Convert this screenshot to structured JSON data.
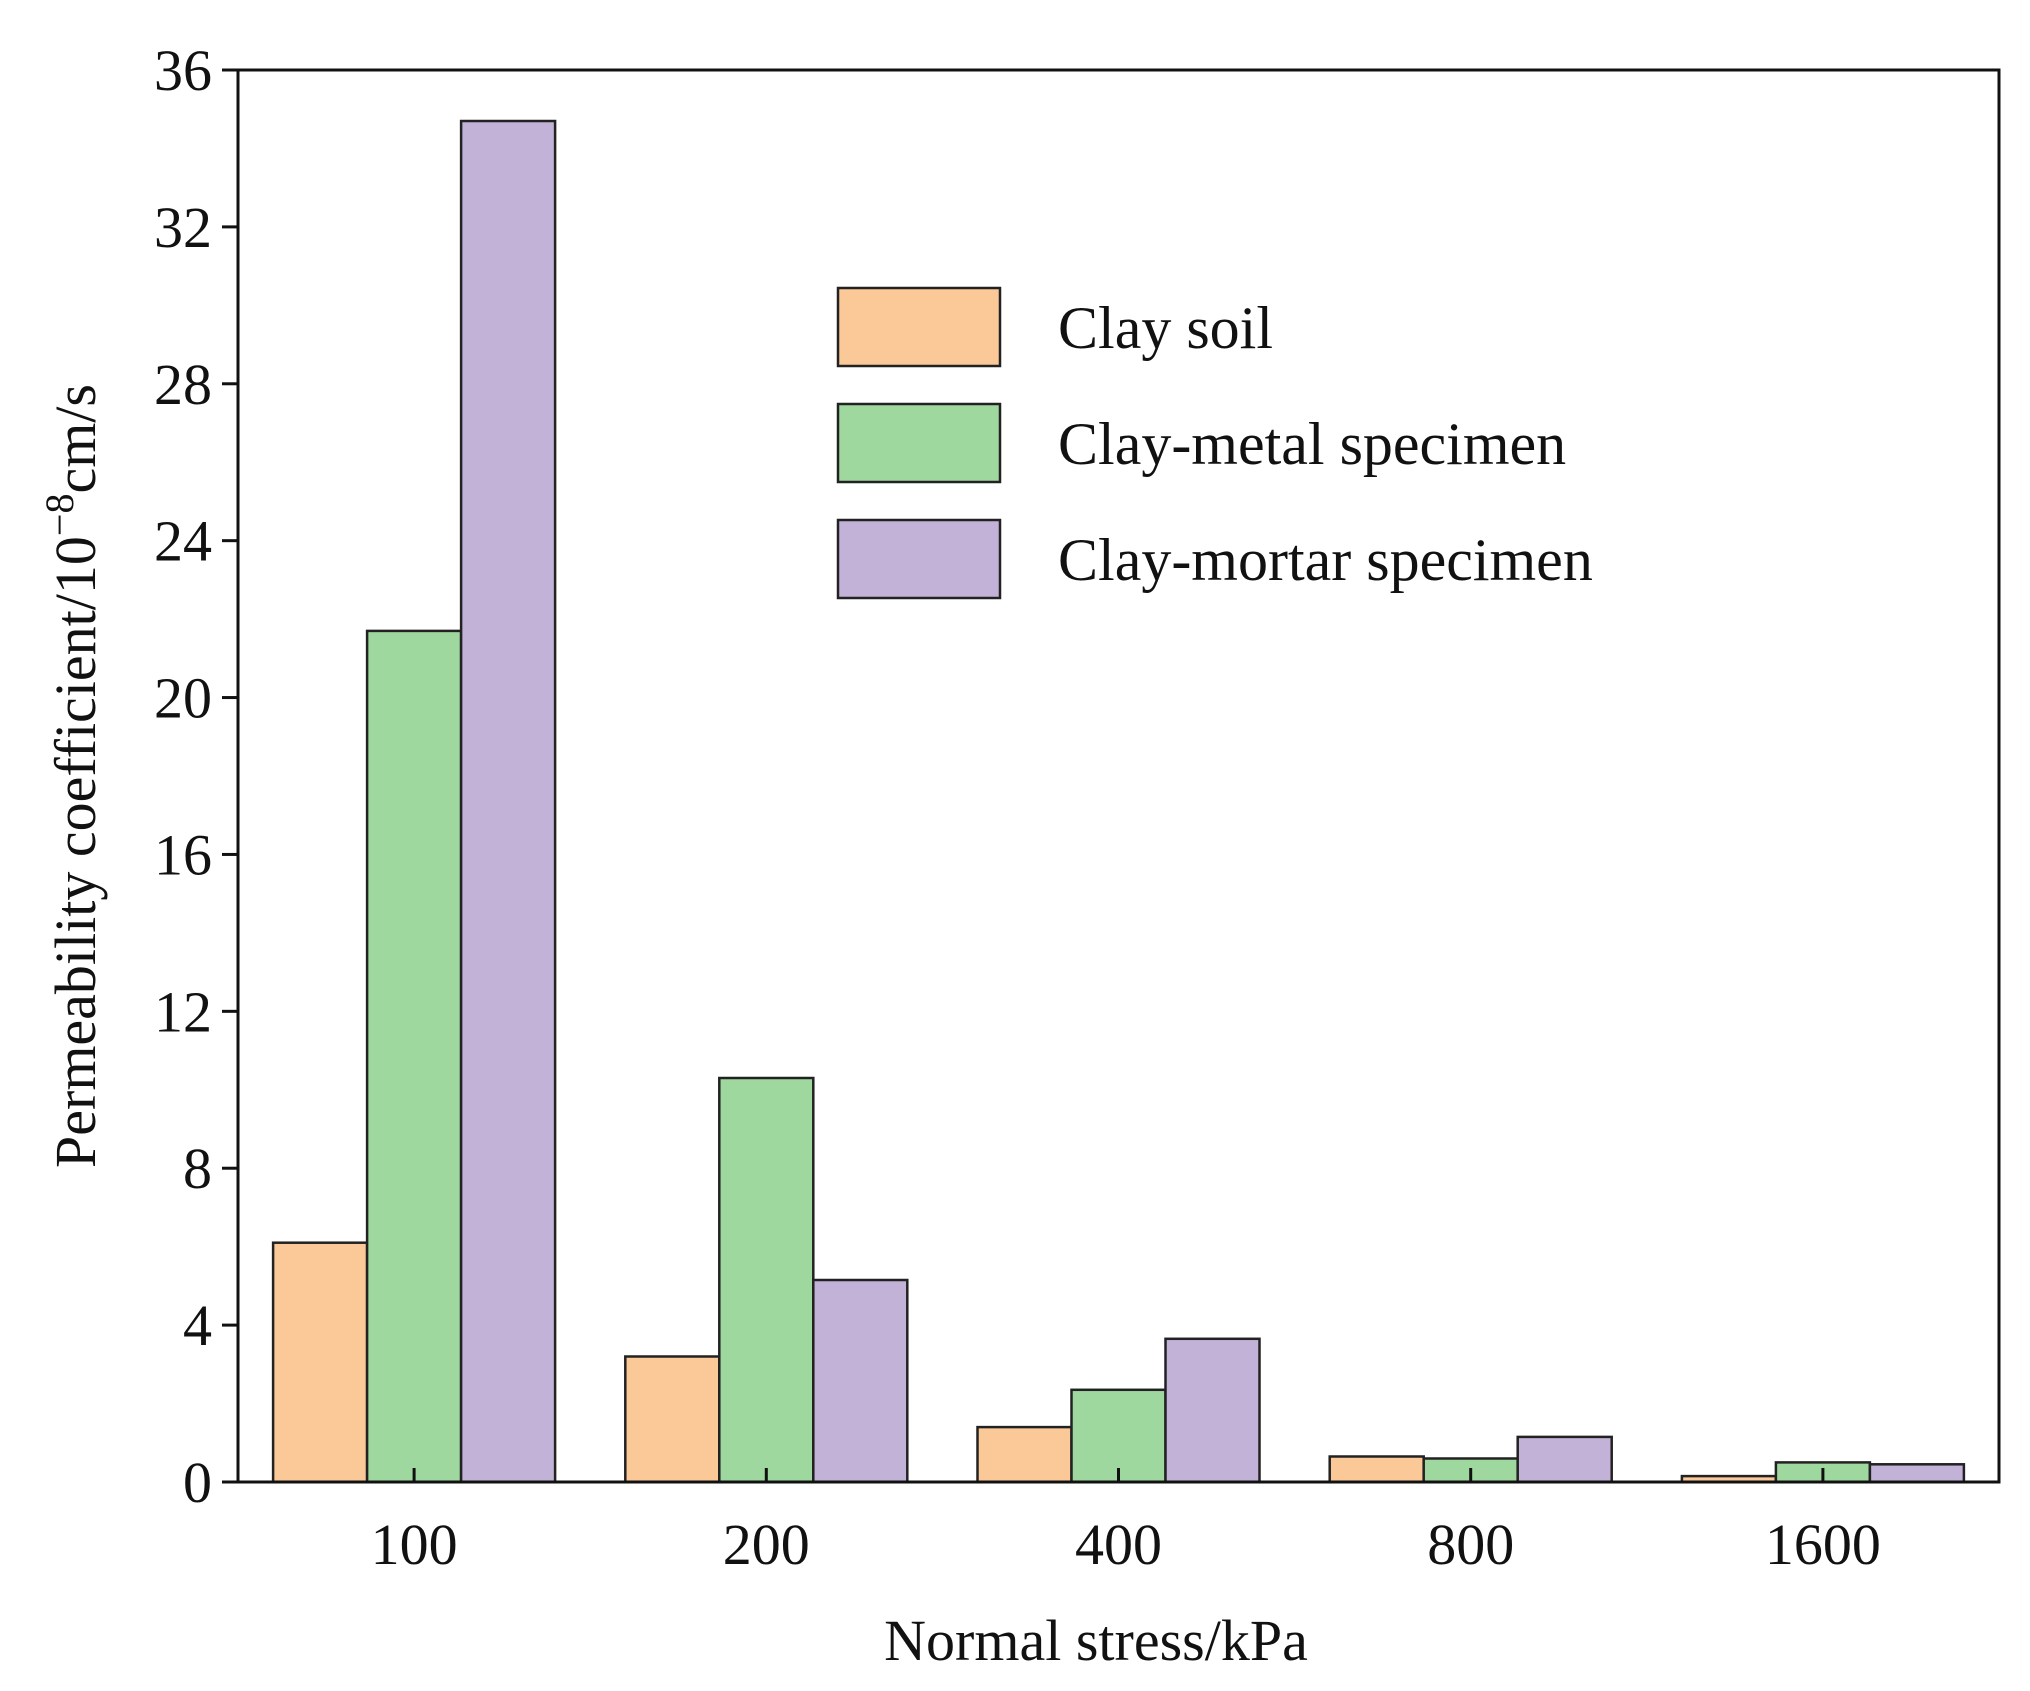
{
  "chart_data": {
    "type": "bar",
    "categories": [
      "100",
      "200",
      "400",
      "800",
      "1600"
    ],
    "series": [
      {
        "name": "Clay soil",
        "color": "#fbc898",
        "values": [
          6.1,
          3.2,
          1.4,
          0.65,
          0.15
        ]
      },
      {
        "name": "Clay-metal specimen",
        "color": "#9fd89f",
        "values": [
          21.7,
          10.3,
          2.35,
          0.6,
          0.5
        ]
      },
      {
        "name": "Clay-mortar specimen",
        "color": "#c3b2d8",
        "values": [
          34.7,
          5.15,
          3.65,
          1.15,
          0.45
        ]
      }
    ],
    "xlabel": "Normal stress/kPa",
    "ylabel_main": "Permeability coefficient/10",
    "ylabel_sup": "−8",
    "ylabel_unit": "cm/s",
    "ylim": [
      0,
      36
    ],
    "yticks": [
      "0",
      "4",
      "8",
      "12",
      "16",
      "20",
      "24",
      "28",
      "32",
      "36"
    ],
    "legend_position": "top-right",
    "grid": false
  }
}
